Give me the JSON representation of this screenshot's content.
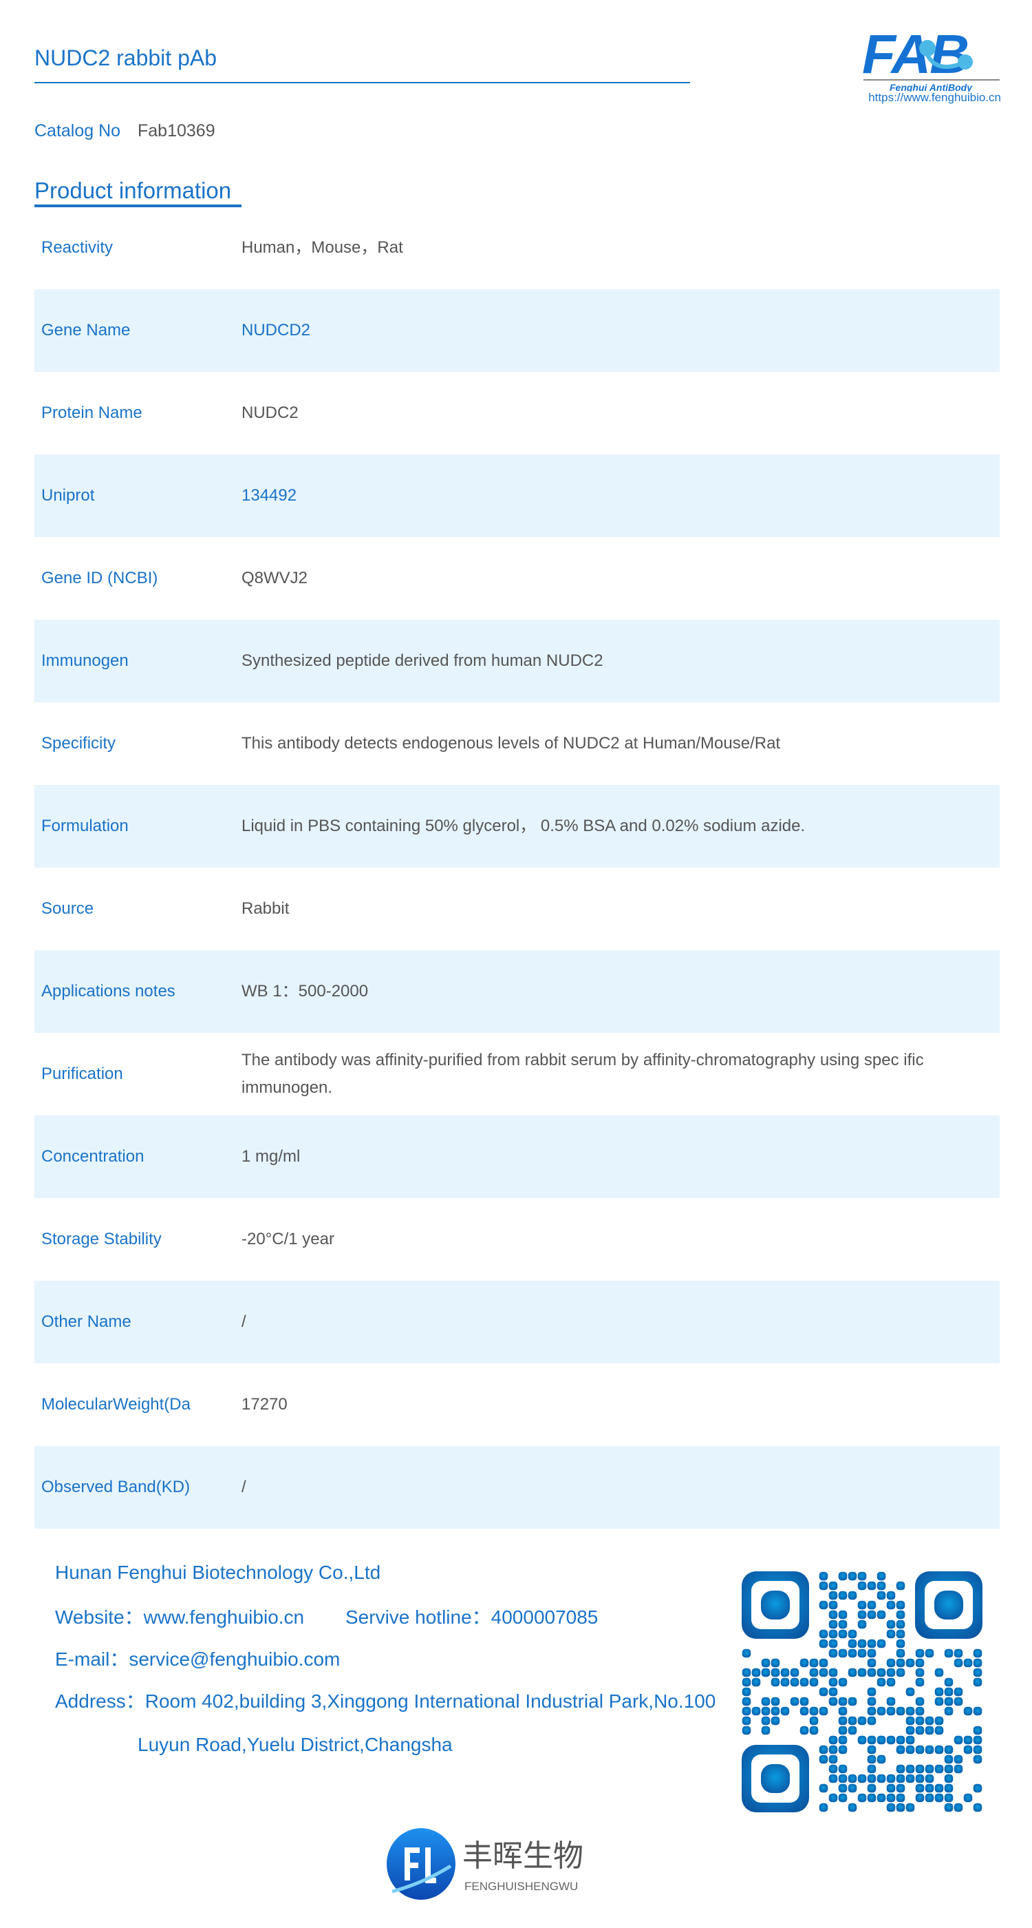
{
  "header": {
    "title": "NUDC2 rabbit pAb",
    "logo_text": "FAB",
    "logo_tagline": "Fenghui AntiBody",
    "logo_url": "https://www.fenghuibio.cn"
  },
  "catalog": {
    "label": "Catalog No",
    "value": "Fab10369"
  },
  "section_title": "Product information",
  "rows": [
    {
      "label": "Reactivity",
      "value": "Human，Mouse，Rat"
    },
    {
      "label": "Gene Name",
      "value": "NUDCD2",
      "blue": true
    },
    {
      "label": "Protein Name",
      "value": "NUDC2"
    },
    {
      "label": "Uniprot",
      "value": "134492",
      "blue": true
    },
    {
      "label": "Gene ID (NCBI)",
      "value": "Q8WVJ2"
    },
    {
      "label": "Immunogen",
      "value": "Synthesized peptide derived from human NUDC2"
    },
    {
      "label": "Specificity",
      "value": "This antibody detects endogenous levels of NUDC2 at Human/Mouse/Rat"
    },
    {
      "label": "Formulation",
      "value": "Liquid in PBS containing 50% glycerol， 0.5% BSA and 0.02% sodium azide."
    },
    {
      "label": "Source",
      "value": "Rabbit"
    },
    {
      "label": "Applications notes",
      "value": "WB 1：500-2000"
    },
    {
      "label": "Purification",
      "value": "The antibody was affinity-purified from rabbit serum by affinity-chromatography using spec ific immunogen."
    },
    {
      "label": "Concentration",
      "value": "1 mg/ml"
    },
    {
      "label": "Storage Stability",
      "value": "-20°C/1 year"
    },
    {
      "label": "Other Name",
      "value": "/"
    },
    {
      "label": "MolecularWeight(Da",
      "value": "17270"
    },
    {
      "label": "Observed Band(KD)",
      "value": "/"
    }
  ],
  "footer": {
    "company": "Hunan Fenghui Biotechnology Co.,Ltd",
    "website": "Website：www.fenghuibio.cn",
    "hotline": "Servive hotline：4000007085",
    "email": "E-mail：service@fenghuibio.com",
    "address_line1": "Address：Room 402,building 3,Xinggong International Industrial Park,No.100",
    "address_line2": "Luyun Road,Yuelu District,Changsha",
    "brand_cn": "丰晖生物",
    "brand_pinyin": "FENGHUISHENGWU"
  },
  "colors": {
    "accent": "#1a73c8",
    "row_shade": "#e6f4fe",
    "value_text": "#555555"
  }
}
